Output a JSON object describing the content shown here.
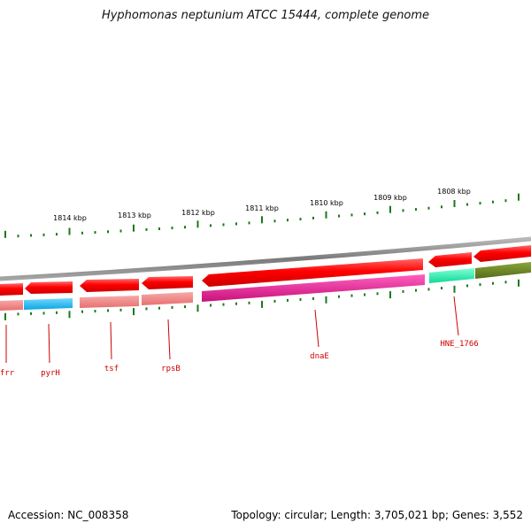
{
  "title": "Hyphomonas neptunium ATCC 15444, complete genome",
  "footer": {
    "accession": "Accession: NC_008358",
    "summary": "Topology: circular; Length: 3,705,021 bp; Genes: 3,552"
  },
  "colors": {
    "backbone": "#8c8c8c",
    "forward_gene": "#ff0000",
    "tick": "#1a7a1a",
    "label_line": "#cc0000"
  },
  "kbp_labels": [
    {
      "text": "1814 kbp",
      "kbp": 1814
    },
    {
      "text": "1813 kbp",
      "kbp": 1813
    },
    {
      "text": "1812 kbp",
      "kbp": 1812
    },
    {
      "text": "1811 kbp",
      "kbp": 1811
    },
    {
      "text": "1810 kbp",
      "kbp": 1810
    },
    {
      "text": "1809 kbp",
      "kbp": 1809
    },
    {
      "text": "1808 kbp",
      "kbp": 1808
    }
  ],
  "gene_labels": [
    {
      "text": "frr",
      "color": "#f08a8a"
    },
    {
      "text": "pyrH",
      "color": "#19b6ee"
    },
    {
      "text": "tsf",
      "color": "#f08a8a"
    },
    {
      "text": "rpsB",
      "color": "#f08a8a"
    },
    {
      "text": "dnaE",
      "color": "#e6208e"
    },
    {
      "text": "HNE_1766",
      "color": "#19f2b4"
    }
  ]
}
